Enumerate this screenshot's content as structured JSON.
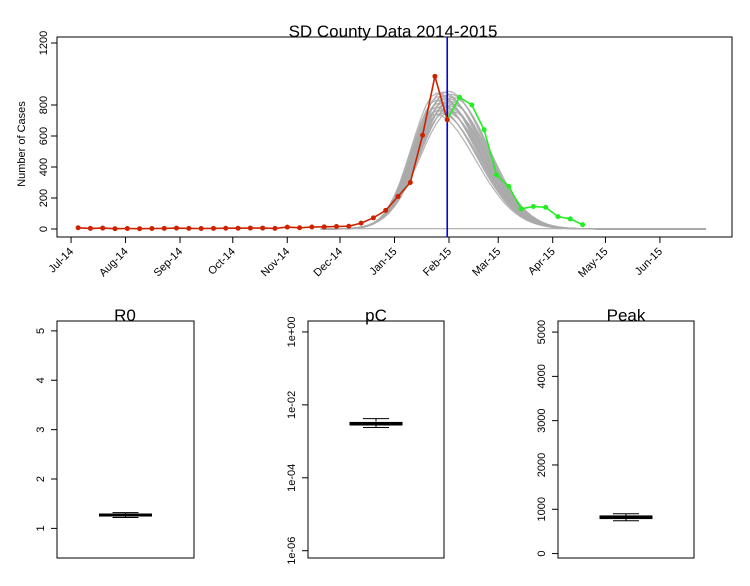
{
  "colors": {
    "background": "#ffffff",
    "axis": "#000000",
    "simulations": "#aaaaaa",
    "fit": "#cc2200",
    "observed_after": "#22ee22",
    "cutoff": "#0000ee"
  },
  "chart_data": [
    {
      "type": "line",
      "title": "SD County Data 2014-2015",
      "xlabel": "",
      "ylabel": "Number of Cases",
      "ylim": [
        0,
        1200
      ],
      "y_ticks": [
        0,
        200,
        400,
        600,
        800,
        1200
      ],
      "x_tick_labels": [
        "Jul-14",
        "Aug-14",
        "Sep-14",
        "Oct-14",
        "Nov-14",
        "Dec-14",
        "Jan-15",
        "Feb-15",
        "Mar-15",
        "Apr-15",
        "May-15",
        "Jun-15"
      ],
      "x_tick_dates": [
        "2014-07-01",
        "2014-08-01",
        "2014-09-01",
        "2014-10-01",
        "2014-11-01",
        "2014-12-01",
        "2015-01-01",
        "2015-02-01",
        "2015-03-01",
        "2015-04-01",
        "2015-05-01",
        "2015-06-01"
      ],
      "xlim": [
        "2014-06-23",
        "2015-07-12"
      ],
      "vertical_line_x": "2015-01-31",
      "series": [
        {
          "role": "fit",
          "color": "#cc2200",
          "x": [
            "2014-07-05",
            "2014-07-12",
            "2014-07-19",
            "2014-07-26",
            "2014-08-02",
            "2014-08-09",
            "2014-08-16",
            "2014-08-23",
            "2014-08-30",
            "2014-09-06",
            "2014-09-13",
            "2014-09-20",
            "2014-09-27",
            "2014-10-04",
            "2014-10-11",
            "2014-10-18",
            "2014-10-25",
            "2014-11-01",
            "2014-11-08",
            "2014-11-15",
            "2014-11-22",
            "2014-11-29",
            "2014-12-06",
            "2014-12-13",
            "2014-12-20",
            "2014-12-27",
            "2015-01-03",
            "2015-01-10",
            "2015-01-17",
            "2015-01-24",
            "2015-01-31"
          ],
          "values": [
            8,
            4,
            6,
            2,
            3,
            2,
            3,
            4,
            6,
            4,
            3,
            4,
            5,
            5,
            6,
            6,
            4,
            12,
            8,
            13,
            14,
            16,
            18,
            38,
            72,
            120,
            210,
            300,
            605,
            985,
            705
          ]
        },
        {
          "role": "observed_after",
          "color": "#22ee22",
          "x": [
            "2015-01-31",
            "2015-02-07",
            "2015-02-14",
            "2015-02-21",
            "2015-02-28",
            "2015-03-07",
            "2015-03-14",
            "2015-03-21",
            "2015-03-28",
            "2015-04-04",
            "2015-04-11",
            "2015-04-18"
          ],
          "values": [
            705,
            850,
            800,
            640,
            350,
            275,
            130,
            145,
            140,
            80,
            65,
            28
          ]
        },
        {
          "role": "simulations",
          "color": "#aaaaaa",
          "peak_date_range": [
            "2015-01-24",
            "2015-02-03"
          ],
          "peak_value_range": [
            740,
            890
          ]
        }
      ]
    },
    {
      "type": "boxplot",
      "title": "R0",
      "ylim": [
        0.4,
        5.2
      ],
      "y_ticks": [
        1,
        2,
        3,
        4,
        5
      ],
      "y_tick_labels": [
        "1",
        "2",
        "3",
        "4",
        "5"
      ],
      "box": {
        "lower_whisker": 1.22,
        "q1": 1.25,
        "median": 1.27,
        "q3": 1.29,
        "upper_whisker": 1.32
      }
    },
    {
      "type": "boxplot",
      "title": "pC",
      "log_scale": true,
      "ylim_log10": [
        -6.2,
        0.3
      ],
      "y_ticks_log10": [
        -6,
        -4,
        -2,
        0
      ],
      "y_tick_labels": [
        "1e-06",
        "1e-04",
        "1e-02",
        "1e+00"
      ],
      "box": {
        "lower_whisker": 0.0024,
        "q1": 0.0028,
        "median": 0.003,
        "q3": 0.0033,
        "upper_whisker": 0.0042
      }
    },
    {
      "type": "boxplot",
      "title": "Peak",
      "ylim": [
        -100,
        5250
      ],
      "y_ticks": [
        0,
        1000,
        2000,
        3000,
        4000,
        5000
      ],
      "y_tick_labels": [
        "0",
        "1000",
        "2000",
        "3000",
        "4000",
        "5000"
      ],
      "box": {
        "lower_whisker": 740,
        "q1": 790,
        "median": 820,
        "q3": 850,
        "upper_whisker": 900
      }
    }
  ]
}
